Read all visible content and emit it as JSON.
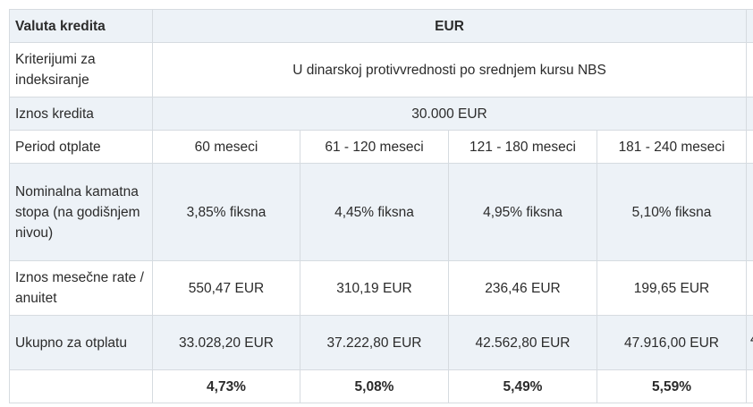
{
  "table": {
    "header": {
      "label": "Valuta kredita",
      "currency": "EUR"
    },
    "indexation": {
      "label": "Kriterijumi za indeksiranje",
      "value": "U dinarskoj protivvrednosti po srednjem kursu NBS"
    },
    "amount": {
      "label": "Iznos kredita",
      "value": "30.000 EUR"
    },
    "period": {
      "label": "Period otplate",
      "values": [
        "60 meseci",
        "61 - 120 meseci",
        "121 - 180 meseci",
        "181 - 240 meseci"
      ]
    },
    "rate": {
      "label": "Nominalna kamatna stopa (na godišnjem nivou)",
      "values": [
        "3,85% fiksna",
        "4,45% fiksna",
        "4,95% fiksna",
        "5,10% fiksna"
      ]
    },
    "installment": {
      "label": "Iznos mesečne rate / anuitet",
      "values": [
        "550,47 EUR",
        "310,19 EUR",
        "236,46 EUR",
        "199,65 EUR"
      ]
    },
    "total": {
      "label": "Ukupno za otplatu",
      "values": [
        "33.028,20 EUR",
        "37.222,80 EUR",
        "42.562,80 EUR",
        "47.916,00 EUR"
      ],
      "clipped_next": "4"
    },
    "eks": {
      "label": "",
      "values": [
        "4,73%",
        "5,08%",
        "5,49%",
        "5,59%"
      ]
    }
  },
  "colors": {
    "shade": "#edf2f7",
    "border": "#d6dbe0",
    "text": "#2b2b2b"
  }
}
